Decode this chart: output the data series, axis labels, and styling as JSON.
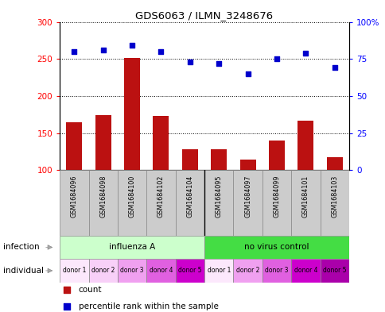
{
  "title": "GDS6063 / ILMN_3248676",
  "samples": [
    "GSM1684096",
    "GSM1684098",
    "GSM1684100",
    "GSM1684102",
    "GSM1684104",
    "GSM1684095",
    "GSM1684097",
    "GSM1684099",
    "GSM1684101",
    "GSM1684103"
  ],
  "counts": [
    165,
    174,
    251,
    173,
    128,
    128,
    114,
    140,
    167,
    117
  ],
  "percentiles": [
    80,
    81,
    84,
    80,
    73,
    72,
    65,
    75,
    79,
    69
  ],
  "ylim_left": [
    100,
    300
  ],
  "ylim_right": [
    0,
    100
  ],
  "yticks_left": [
    100,
    150,
    200,
    250,
    300
  ],
  "yticks_right": [
    0,
    25,
    50,
    75,
    100
  ],
  "yticklabels_right": [
    "0",
    "25",
    "50",
    "75",
    "100%"
  ],
  "bar_color": "#bb1111",
  "dot_color": "#0000cc",
  "infection_label_light": "influenza A",
  "infection_label_dark": "no virus control",
  "infection_color_light": "#ccffcc",
  "infection_color_dark": "#44dd44",
  "donor_colors": [
    "#fce8fc",
    "#f8d0f8",
    "#f0a0f0",
    "#e060e0",
    "#cc00cc",
    "#fce8fc",
    "#f0a0f0",
    "#e060e0",
    "#cc00cc",
    "#aa00aa"
  ],
  "individual_labels": [
    "donor 1",
    "donor 2",
    "donor 3",
    "donor 4",
    "donor 5",
    "donor 1",
    "donor 2",
    "donor 3",
    "donor 4",
    "donor 5"
  ],
  "bg_color": "#ffffff",
  "sample_box_color": "#cccccc",
  "label_infection": "infection",
  "label_individual": "individual",
  "legend_count": "count",
  "legend_percentile": "percentile rank within the sample"
}
